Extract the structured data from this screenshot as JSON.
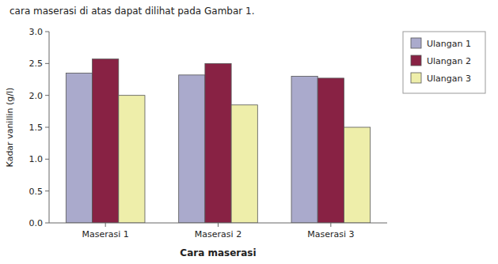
{
  "chart_data": {
    "type": "bar",
    "annotations": [
      "cara maserasi di atas dapat dilihat pada Gambar 1."
    ],
    "categories": [
      "Maserasi 1",
      "Maserasi 2",
      "Maserasi 3"
    ],
    "series": [
      {
        "name": "Ulangan 1",
        "color": "#aaaacc",
        "values": [
          2.35,
          2.32,
          2.3
        ]
      },
      {
        "name": "Ulangan 2",
        "color": "#882244",
        "values": [
          2.57,
          2.5,
          2.27
        ]
      },
      {
        "name": "Ulangan 3",
        "color": "#eeeeaa",
        "values": [
          2.0,
          1.85,
          1.5
        ]
      }
    ],
    "xlabel": "Cara maserasi",
    "ylabel": "Kadar vanillin (g/l)",
    "ylim": [
      0.0,
      3.0
    ],
    "yticks": [
      {
        "value": 0,
        "label": "0.0"
      },
      0.5,
      {
        "value": 1,
        "label": "1.0"
      },
      1.5,
      {
        "value": 2,
        "label": "2.0"
      },
      2.5,
      {
        "value": 3,
        "label": "3.0"
      }
    ],
    "grid": false,
    "legend": "upper right"
  }
}
